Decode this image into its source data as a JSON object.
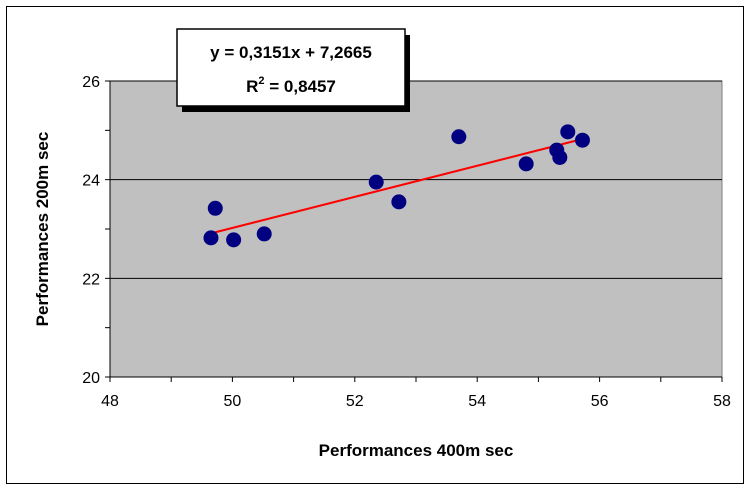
{
  "chart_data": {
    "type": "scatter",
    "xlabel": "Performances 400m sec",
    "ylabel": "Performances 200m sec",
    "xlim": [
      48,
      58
    ],
    "ylim": [
      20,
      26
    ],
    "x_ticks": [
      48,
      50,
      52,
      54,
      56,
      58
    ],
    "y_ticks": [
      20,
      22,
      24,
      26
    ],
    "x_tick_labels": [
      "48",
      "50",
      "52",
      "54",
      "56",
      "58"
    ],
    "y_tick_labels": [
      "20",
      "22",
      "24",
      "26"
    ],
    "grid": "horizontal",
    "plot_background": "#c0c0c0",
    "points": [
      {
        "x": 49.65,
        "y": 22.82
      },
      {
        "x": 49.72,
        "y": 23.42
      },
      {
        "x": 50.02,
        "y": 22.78
      },
      {
        "x": 50.52,
        "y": 22.9
      },
      {
        "x": 52.35,
        "y": 23.95
      },
      {
        "x": 52.72,
        "y": 23.55
      },
      {
        "x": 53.7,
        "y": 24.87
      },
      {
        "x": 54.8,
        "y": 24.32
      },
      {
        "x": 55.3,
        "y": 24.6
      },
      {
        "x": 55.35,
        "y": 24.45
      },
      {
        "x": 55.48,
        "y": 24.97
      },
      {
        "x": 55.72,
        "y": 24.8
      }
    ],
    "trendline": {
      "slope": 0.3151,
      "intercept": 7.2665,
      "x_range": [
        49.65,
        55.72
      ],
      "color": "#ff0000"
    },
    "marker_color": "#000080",
    "equation_label": {
      "line1": "y = 0,3151x + 7,2665",
      "line2_prefix": "R",
      "line2_sup": "2",
      "line2_suffix": " = 0,8457"
    }
  }
}
